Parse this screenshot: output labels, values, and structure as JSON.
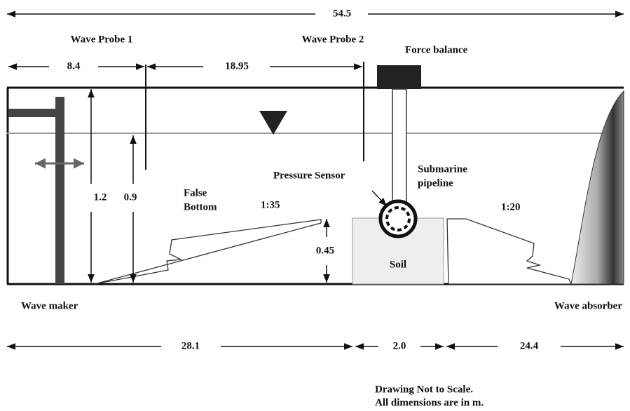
{
  "dimensions": {
    "total_length": "54.5",
    "probe1_distance": "8.4",
    "probe_spacing": "18.95",
    "tank_height": "1.2",
    "water_depth": "0.9",
    "mound_height": "0.45",
    "left_length": "28.1",
    "soil_width": "2.0",
    "right_length": "24.4"
  },
  "labels": {
    "wave_probe_1": "Wave Probe 1",
    "wave_probe_2": "Wave Probe 2",
    "force_balance": "Force balance",
    "pressure_sensor": "Pressure Sensor",
    "submarine_pipeline": [
      "Submarine",
      "pipeline"
    ],
    "false_bottom": [
      "False",
      "Bottom"
    ],
    "soil": "Soil",
    "wave_maker": "Wave maker",
    "wave_absorber": "Wave absorber"
  },
  "slopes": {
    "left": "1:35",
    "right": "1:20"
  },
  "note": [
    "Drawing Not to Scale.",
    "All dimensions are in m."
  ]
}
